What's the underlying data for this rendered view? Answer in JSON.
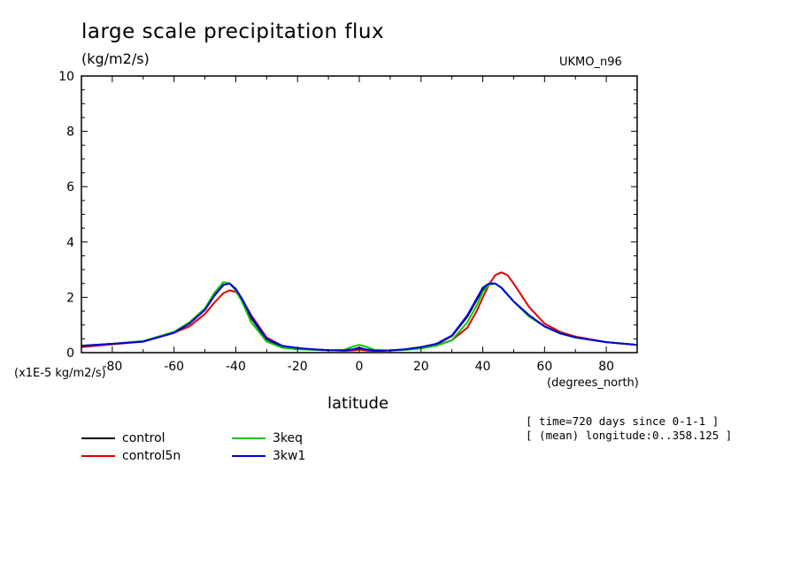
{
  "title": "large scale precipitation flux",
  "units_top": "(kg/m2/s)",
  "model": "UKMO_n96",
  "scale_label": "(x1E-5 kg/m2/s)",
  "x_units": "(degrees_north)",
  "xlabel": "latitude",
  "info_lines": [
    "[ time=720 days since 0-1-1 ]",
    "[ (mean) longitude:0..358.125 ]"
  ],
  "chart_data": {
    "type": "line",
    "title": "large scale precipitation flux",
    "xlabel": "latitude",
    "ylabel": "(kg/m2/s)",
    "xlim": [
      -90,
      90
    ],
    "ylim": [
      0,
      10
    ],
    "x_ticks": [
      -80,
      -60,
      -40,
      -20,
      0,
      20,
      40,
      60,
      80
    ],
    "x_tick_labels": [
      "-80",
      "-60",
      "-40",
      "-20",
      "0",
      "20",
      "40",
      "60",
      "80"
    ],
    "y_ticks": [
      0,
      2,
      4,
      6,
      8,
      10
    ],
    "y_tick_labels": [
      "0",
      "2",
      "4",
      "6",
      "8",
      "10"
    ],
    "grid": false,
    "legend_position": "bottom-left",
    "x": [
      -90,
      -80,
      -70,
      -60,
      -55,
      -50,
      -47,
      -44,
      -42,
      -40,
      -38,
      -35,
      -30,
      -25,
      -20,
      -15,
      -10,
      -5,
      -2,
      0,
      2,
      5,
      10,
      15,
      20,
      25,
      30,
      35,
      38,
      40,
      42,
      44,
      46,
      48,
      50,
      55,
      60,
      65,
      70,
      80,
      90
    ],
    "series": [
      {
        "name": "control",
        "color": "#000000",
        "values": [
          0.25,
          0.32,
          0.4,
          0.72,
          1.05,
          1.55,
          2.05,
          2.45,
          2.5,
          2.3,
          1.95,
          1.25,
          0.48,
          0.22,
          0.15,
          0.12,
          0.09,
          0.07,
          0.08,
          0.12,
          0.08,
          0.06,
          0.08,
          0.12,
          0.2,
          0.3,
          0.6,
          1.3,
          1.9,
          2.3,
          2.45,
          2.5,
          2.35,
          2.1,
          1.85,
          1.35,
          0.95,
          0.7,
          0.55,
          0.38,
          0.28
        ]
      },
      {
        "name": "control5n",
        "color": "#e00000",
        "values": [
          0.2,
          0.3,
          0.4,
          0.72,
          0.95,
          1.4,
          1.8,
          2.15,
          2.25,
          2.2,
          1.95,
          1.35,
          0.55,
          0.25,
          0.15,
          0.12,
          0.09,
          0.07,
          0.08,
          0.1,
          0.08,
          0.06,
          0.08,
          0.12,
          0.18,
          0.26,
          0.45,
          0.9,
          1.5,
          2.0,
          2.45,
          2.8,
          2.9,
          2.8,
          2.5,
          1.65,
          1.05,
          0.75,
          0.58,
          0.38,
          0.28
        ]
      },
      {
        "name": "3keq",
        "color": "#00c800",
        "values": [
          0.25,
          0.32,
          0.42,
          0.75,
          1.1,
          1.6,
          2.15,
          2.55,
          2.5,
          2.25,
          1.85,
          1.1,
          0.4,
          0.18,
          0.12,
          0.1,
          0.08,
          0.1,
          0.22,
          0.28,
          0.22,
          0.1,
          0.07,
          0.1,
          0.15,
          0.25,
          0.45,
          1.1,
          1.7,
          2.2,
          2.45,
          2.5,
          2.35,
          2.1,
          1.85,
          1.3,
          0.95,
          0.7,
          0.55,
          0.38,
          0.28
        ]
      },
      {
        "name": "3kw1",
        "color": "#0000e0",
        "values": [
          0.25,
          0.32,
          0.4,
          0.72,
          1.05,
          1.55,
          2.05,
          2.45,
          2.5,
          2.3,
          1.95,
          1.3,
          0.5,
          0.25,
          0.17,
          0.12,
          0.09,
          0.08,
          0.12,
          0.18,
          0.12,
          0.07,
          0.08,
          0.12,
          0.2,
          0.32,
          0.62,
          1.35,
          1.95,
          2.35,
          2.5,
          2.5,
          2.35,
          2.1,
          1.85,
          1.35,
          0.95,
          0.7,
          0.55,
          0.38,
          0.28
        ]
      }
    ]
  },
  "legend": [
    {
      "label": "control",
      "color": "#000000"
    },
    {
      "label": "control5n",
      "color": "#e00000"
    },
    {
      "label": "3keq",
      "color": "#00c800"
    },
    {
      "label": "3kw1",
      "color": "#0000e0"
    }
  ]
}
